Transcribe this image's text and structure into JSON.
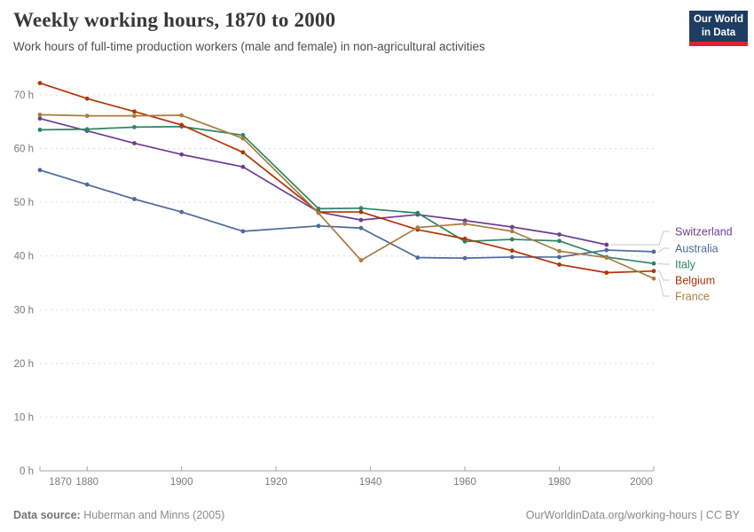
{
  "header": {
    "title": "Weekly working hours, 1870 to 2000",
    "subtitle": "Work hours of full-time production workers (male and female) in non-agricultural activities",
    "logo": {
      "line1": "Our World",
      "line2": "in Data"
    }
  },
  "footer": {
    "datasource_label": "Data source:",
    "datasource_value": " Huberman and Minns (2005)",
    "credit": "OurWorldinData.org/working-hours | CC BY"
  },
  "colors": {
    "grid": "#dcdcdc",
    "axis": "#a3a3a3",
    "tick_text": "#7a7a7a",
    "connector": "#c9c9c9"
  },
  "chart_data": {
    "type": "line",
    "title": "Weekly working hours, 1870 to 2000",
    "subtitle": "Work hours of full-time production workers (male and female) in non-agricultural activities",
    "x": [
      1870,
      1880,
      1890,
      1900,
      1913,
      1929,
      1938,
      1950,
      1960,
      1970,
      1980,
      1990,
      2000
    ],
    "xlim": [
      1870,
      2000
    ],
    "ylim": [
      0,
      70
    ],
    "grid": "horizontal-dashed",
    "legend_position": "right",
    "unit_suffix": " h",
    "yticks": [
      {
        "v": 0,
        "label": "0 h"
      },
      {
        "v": 10,
        "label": "10 h"
      },
      {
        "v": 20,
        "label": "20 h"
      },
      {
        "v": 30,
        "label": "30 h"
      },
      {
        "v": 40,
        "label": "40 h"
      },
      {
        "v": 50,
        "label": "50 h"
      },
      {
        "v": 60,
        "label": "60 h"
      },
      {
        "v": 70,
        "label": "70 h"
      }
    ],
    "xticks": [
      {
        "v": 1870,
        "label": "1870"
      },
      {
        "v": 1880,
        "label": "1880"
      },
      {
        "v": 1900,
        "label": "1900"
      },
      {
        "v": 1920,
        "label": "1920"
      },
      {
        "v": 1940,
        "label": "1940"
      },
      {
        "v": 1960,
        "label": "1960"
      },
      {
        "v": 1980,
        "label": "1980"
      },
      {
        "v": 2000,
        "label": "2000"
      }
    ],
    "series": [
      {
        "name": "Switzerland",
        "color": "#6d3e91",
        "values": [
          65.6,
          63.3,
          61.0,
          58.9,
          56.6,
          48.2,
          46.7,
          47.7,
          46.6,
          45.4,
          44.0,
          42.1,
          null
        ]
      },
      {
        "name": "Australia",
        "color": "#4c6a9c",
        "values": [
          56.0,
          53.3,
          50.6,
          48.2,
          44.6,
          45.6,
          45.2,
          39.7,
          39.6,
          39.8,
          39.8,
          41.1,
          40.8
        ]
      },
      {
        "name": "Italy",
        "color": "#2c8465",
        "values": [
          63.5,
          63.6,
          64.0,
          64.1,
          62.5,
          48.8,
          48.9,
          48.0,
          42.7,
          43.1,
          42.8,
          39.8,
          38.6
        ]
      },
      {
        "name": "Belgium",
        "color": "#b13507",
        "values": [
          72.2,
          69.3,
          66.9,
          64.4,
          59.3,
          48.2,
          48.2,
          44.9,
          43.2,
          41.0,
          38.4,
          36.9,
          37.2
        ]
      },
      {
        "name": "France",
        "color": "#a87d3c",
        "values": [
          66.3,
          66.1,
          66.1,
          66.2,
          61.9,
          48.0,
          39.2,
          45.3,
          46.0,
          44.6,
          40.9,
          39.7,
          35.8
        ]
      }
    ]
  }
}
